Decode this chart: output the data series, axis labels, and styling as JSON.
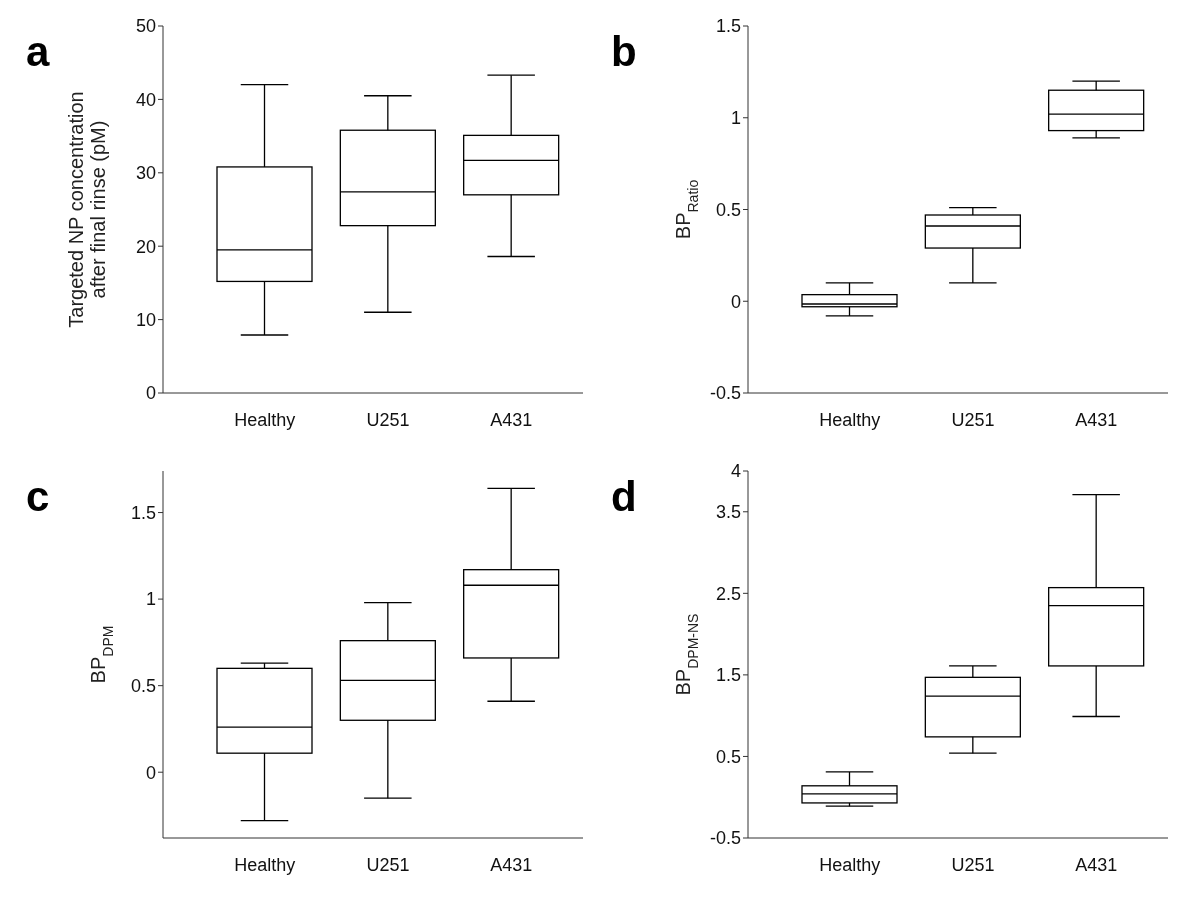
{
  "chart_data": [
    {
      "type": "box",
      "title": "a",
      "ylabel": "Targeted NP concentration after final rinse (pM)",
      "categories": [
        "Healthy",
        "U251",
        "A431"
      ],
      "color": "#000000",
      "ylim": [
        0,
        50
      ],
      "yticks": [
        0,
        10,
        20,
        30,
        40,
        50
      ],
      "boxes": [
        {
          "low": 7.9,
          "q1": 15.2,
          "median": 19.5,
          "q3": 30.8,
          "high": 42.0
        },
        {
          "low": 11.0,
          "q1": 22.8,
          "median": 27.4,
          "q3": 35.8,
          "high": 40.5
        },
        {
          "low": 18.6,
          "q1": 27.0,
          "median": 31.7,
          "q3": 35.1,
          "high": 43.3
        }
      ]
    },
    {
      "type": "box",
      "title": "b",
      "ylabel": "BP$_{Ratio}$",
      "categories": [
        "Healthy",
        "U251",
        "A431"
      ],
      "color": "#000000",
      "ylim": [
        -0.5,
        1.5
      ],
      "yticks": [
        -0.5,
        0,
        0.5,
        1,
        1.5
      ],
      "boxes": [
        {
          "low": -0.08,
          "q1": -0.03,
          "median": -0.015,
          "q3": 0.036,
          "high": 0.1
        },
        {
          "low": 0.1,
          "q1": 0.29,
          "median": 0.41,
          "q3": 0.47,
          "high": 0.51
        },
        {
          "low": 0.89,
          "q1": 0.93,
          "median": 1.02,
          "q3": 1.15,
          "high": 1.2
        }
      ]
    },
    {
      "type": "box",
      "title": "c",
      "ylabel": "BP$_{DPM}$",
      "categories": [
        "Healthy",
        "U251",
        "A431"
      ],
      "color": "#000000",
      "ylim": [
        -0.38,
        1.74
      ],
      "yticks": [
        0,
        0.5,
        1,
        1.5
      ],
      "boxes": [
        {
          "low": -0.28,
          "q1": 0.11,
          "median": 0.26,
          "q3": 0.6,
          "high": 0.63
        },
        {
          "low": -0.15,
          "q1": 0.3,
          "median": 0.53,
          "q3": 0.76,
          "high": 0.98
        },
        {
          "low": 0.41,
          "q1": 0.66,
          "median": 1.08,
          "q3": 1.17,
          "high": 1.64
        }
      ]
    },
    {
      "type": "box",
      "title": "d",
      "ylabel": "BP$_{DPM-NS}$",
      "categories": [
        "Healthy",
        "U251",
        "A431"
      ],
      "color": "#000000",
      "ylim": [
        -0.5,
        4
      ],
      "yticks": [
        -0.5,
        0.5,
        1.5,
        2.5,
        3.5,
        4
      ],
      "boxes": [
        {
          "low": -0.11,
          "q1": -0.07,
          "median": 0.04,
          "q3": 0.14,
          "high": 0.31
        },
        {
          "low": 0.54,
          "q1": 0.74,
          "median": 1.24,
          "q3": 1.47,
          "high": 1.61
        },
        {
          "low": 0.99,
          "q1": 1.61,
          "median": 2.35,
          "q3": 2.57,
          "high": 3.71
        }
      ]
    }
  ]
}
